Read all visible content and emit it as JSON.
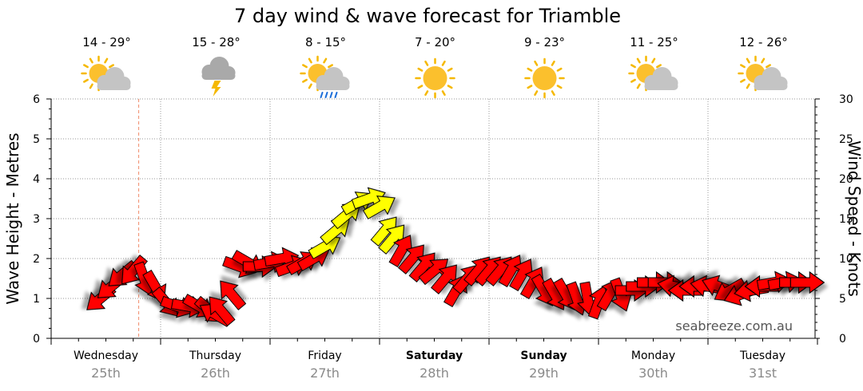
{
  "chart_data": {
    "type": "line",
    "title": "7 day wind & wave forecast for Triamble",
    "left_axis": {
      "label": "Wave Height - Metres",
      "ylim": [
        0,
        6
      ],
      "ticks": [
        0,
        1,
        2,
        3,
        4,
        5,
        6
      ]
    },
    "right_axis": {
      "label": "Wind Speed - Knots",
      "ylim": [
        0,
        30
      ],
      "ticks": [
        0,
        5,
        10,
        15,
        20,
        25,
        30
      ]
    },
    "watermark": "seabreeze.com.au",
    "grid": true,
    "now_marker_day_offset": 0.8,
    "days": [
      {
        "name": "Wednesday",
        "date": "25th",
        "temp": "14 - 29°",
        "icon": "partly-cloudy-icon",
        "bold": false
      },
      {
        "name": "Thursday",
        "date": "26th",
        "temp": "15 - 28°",
        "icon": "storm-icon",
        "bold": false
      },
      {
        "name": "Friday",
        "date": "27th",
        "temp": "8 - 15°",
        "icon": "partly-cloudy-rain-icon",
        "bold": false
      },
      {
        "name": "Saturday",
        "date": "28th",
        "temp": "7 - 20°",
        "icon": "sun-icon",
        "bold": true
      },
      {
        "name": "Sunday",
        "date": "29th",
        "temp": "9 - 23°",
        "icon": "sun-icon",
        "bold": true
      },
      {
        "name": "Monday",
        "date": "30th",
        "temp": "11 - 25°",
        "icon": "partly-cloudy-icon",
        "bold": false
      },
      {
        "name": "Tuesday",
        "date": "31st",
        "temp": "12 - 26°",
        "icon": "partly-cloudy-icon",
        "bold": false
      }
    ],
    "wind_series": {
      "name": "Wind",
      "unit": "knots",
      "colors": {
        "strong": "#ff0000",
        "moderate": "#ffff00"
      },
      "points": [
        {
          "t": 0.45,
          "speed": 5,
          "dir": 230,
          "color": "strong"
        },
        {
          "t": 0.55,
          "speed": 6.5,
          "dir": 230,
          "color": "strong"
        },
        {
          "t": 0.65,
          "speed": 8,
          "dir": 230,
          "color": "strong"
        },
        {
          "t": 0.75,
          "speed": 8.5,
          "dir": 220,
          "color": "strong"
        },
        {
          "t": 0.85,
          "speed": 7.5,
          "dir": 160,
          "color": "strong"
        },
        {
          "t": 0.95,
          "speed": 6.5,
          "dir": 150,
          "color": "strong"
        },
        {
          "t": 1.05,
          "speed": 4.5,
          "dir": 140,
          "color": "strong"
        },
        {
          "t": 1.15,
          "speed": 4,
          "dir": 110,
          "color": "strong"
        },
        {
          "t": 1.25,
          "speed": 4,
          "dir": 100,
          "color": "strong"
        },
        {
          "t": 1.35,
          "speed": 4,
          "dir": 120,
          "color": "strong"
        },
        {
          "t": 1.45,
          "speed": 3.5,
          "dir": 130,
          "color": "strong"
        },
        {
          "t": 1.5,
          "speed": 3,
          "dir": 300,
          "color": "strong"
        },
        {
          "t": 1.55,
          "speed": 3.5,
          "dir": 320,
          "color": "strong"
        },
        {
          "t": 1.65,
          "speed": 5.5,
          "dir": 320,
          "color": "strong"
        },
        {
          "t": 1.72,
          "speed": 9,
          "dir": 110,
          "color": "strong"
        },
        {
          "t": 1.8,
          "speed": 9.5,
          "dir": 120,
          "color": "strong"
        },
        {
          "t": 1.9,
          "speed": 9,
          "dir": 90,
          "color": "strong"
        },
        {
          "t": 2.0,
          "speed": 9.5,
          "dir": 80,
          "color": "strong"
        },
        {
          "t": 2.1,
          "speed": 10,
          "dir": 80,
          "color": "strong"
        },
        {
          "t": 2.2,
          "speed": 9,
          "dir": 70,
          "color": "strong"
        },
        {
          "t": 2.3,
          "speed": 9.5,
          "dir": 60,
          "color": "strong"
        },
        {
          "t": 2.4,
          "speed": 10,
          "dir": 60,
          "color": "strong"
        },
        {
          "t": 2.5,
          "speed": 11.5,
          "dir": 60,
          "color": "moderate"
        },
        {
          "t": 2.6,
          "speed": 13.5,
          "dir": 50,
          "color": "moderate"
        },
        {
          "t": 2.7,
          "speed": 15.5,
          "dir": 50,
          "color": "moderate"
        },
        {
          "t": 2.8,
          "speed": 17,
          "dir": 60,
          "color": "moderate"
        },
        {
          "t": 2.9,
          "speed": 17.5,
          "dir": 70,
          "color": "moderate"
        },
        {
          "t": 3.0,
          "speed": 16.5,
          "dir": 60,
          "color": "moderate"
        },
        {
          "t": 3.05,
          "speed": 13.5,
          "dir": 40,
          "color": "moderate"
        },
        {
          "t": 3.12,
          "speed": 12.5,
          "dir": 40,
          "color": "moderate"
        },
        {
          "t": 3.2,
          "speed": 11,
          "dir": 30,
          "color": "strong"
        },
        {
          "t": 3.3,
          "speed": 10,
          "dir": 40,
          "color": "strong"
        },
        {
          "t": 3.4,
          "speed": 9,
          "dir": 40,
          "color": "strong"
        },
        {
          "t": 3.5,
          "speed": 8.5,
          "dir": 50,
          "color": "strong"
        },
        {
          "t": 3.6,
          "speed": 7.5,
          "dir": 40,
          "color": "strong"
        },
        {
          "t": 3.7,
          "speed": 6,
          "dir": 30,
          "color": "strong"
        },
        {
          "t": 3.8,
          "speed": 7.5,
          "dir": 40,
          "color": "strong"
        },
        {
          "t": 3.9,
          "speed": 8.5,
          "dir": 40,
          "color": "strong"
        },
        {
          "t": 4.0,
          "speed": 8.5,
          "dir": 40,
          "color": "strong"
        },
        {
          "t": 4.1,
          "speed": 8.5,
          "dir": 40,
          "color": "strong"
        },
        {
          "t": 4.2,
          "speed": 8.5,
          "dir": 30,
          "color": "strong"
        },
        {
          "t": 4.3,
          "speed": 8,
          "dir": 30,
          "color": "strong"
        },
        {
          "t": 4.4,
          "speed": 7,
          "dir": 30,
          "color": "strong"
        },
        {
          "t": 4.5,
          "speed": 6,
          "dir": 150,
          "color": "strong"
        },
        {
          "t": 4.6,
          "speed": 5.5,
          "dir": 150,
          "color": "strong"
        },
        {
          "t": 4.7,
          "speed": 5.5,
          "dir": 150,
          "color": "strong"
        },
        {
          "t": 4.8,
          "speed": 5,
          "dir": 160,
          "color": "strong"
        },
        {
          "t": 4.9,
          "speed": 5,
          "dir": 170,
          "color": "strong"
        },
        {
          "t": 5.0,
          "speed": 4.5,
          "dir": 20,
          "color": "strong"
        },
        {
          "t": 5.1,
          "speed": 5.5,
          "dir": 30,
          "color": "strong"
        },
        {
          "t": 5.2,
          "speed": 5.5,
          "dir": 160,
          "color": "strong"
        },
        {
          "t": 5.3,
          "speed": 6,
          "dir": 90,
          "color": "strong"
        },
        {
          "t": 5.4,
          "speed": 6.5,
          "dir": 90,
          "color": "strong"
        },
        {
          "t": 5.5,
          "speed": 7,
          "dir": 90,
          "color": "strong"
        },
        {
          "t": 5.6,
          "speed": 7,
          "dir": 90,
          "color": "strong"
        },
        {
          "t": 5.7,
          "speed": 6.5,
          "dir": 280,
          "color": "strong"
        },
        {
          "t": 5.8,
          "speed": 6,
          "dir": 270,
          "color": "strong"
        },
        {
          "t": 5.9,
          "speed": 6.5,
          "dir": 270,
          "color": "strong"
        },
        {
          "t": 6.0,
          "speed": 6.5,
          "dir": 280,
          "color": "strong"
        },
        {
          "t": 6.1,
          "speed": 6.5,
          "dir": 290,
          "color": "strong"
        },
        {
          "t": 6.2,
          "speed": 6,
          "dir": 240,
          "color": "strong"
        },
        {
          "t": 6.3,
          "speed": 5.5,
          "dir": 250,
          "color": "strong"
        },
        {
          "t": 6.4,
          "speed": 6,
          "dir": 260,
          "color": "strong"
        },
        {
          "t": 6.5,
          "speed": 6.5,
          "dir": 270,
          "color": "strong"
        },
        {
          "t": 6.6,
          "speed": 7,
          "dir": 80,
          "color": "strong"
        },
        {
          "t": 6.7,
          "speed": 7,
          "dir": 80,
          "color": "strong"
        },
        {
          "t": 6.8,
          "speed": 7,
          "dir": 90,
          "color": "strong"
        },
        {
          "t": 6.9,
          "speed": 7,
          "dir": 90,
          "color": "strong"
        }
      ]
    }
  }
}
